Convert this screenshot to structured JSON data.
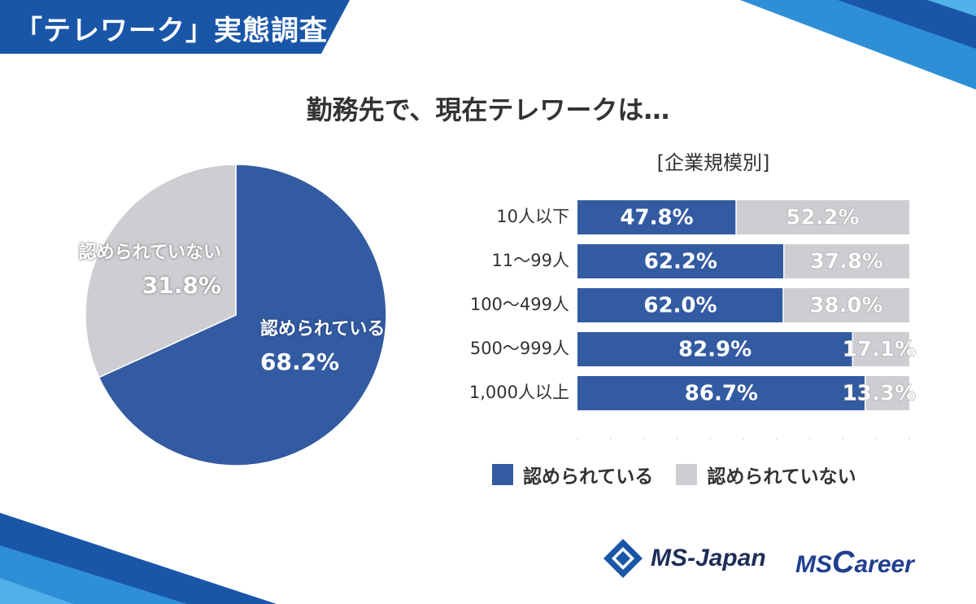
{
  "header": {
    "title": "「テレワーク」実態調査"
  },
  "main_title": "勤務先で、現在テレワークは…",
  "subtitle": "[企業規模別]",
  "colors": {
    "allowed": "#335ba1",
    "not_allowed": "#cdcdd2",
    "banner": "#1a56a8"
  },
  "legend": {
    "allowed": "認められている",
    "not_allowed": "認められていない"
  },
  "logos": {
    "ms_japan": "MS-Japan",
    "ms_career_prefix": "MS",
    "ms_career_c": "C",
    "ms_career_rest": "areer"
  },
  "chart_data": [
    {
      "type": "pie",
      "labels": [
        "認められている",
        "認められていない"
      ],
      "values": [
        68.2,
        31.8
      ],
      "value_labels": [
        "68.2%",
        "31.8%"
      ]
    },
    {
      "type": "bar",
      "orientation": "horizontal",
      "stacked": true,
      "categories": [
        "10人以下",
        "11〜99人",
        "100〜499人",
        "500〜999人",
        "1,000人以上"
      ],
      "series": [
        {
          "name": "認められている",
          "values": [
            47.8,
            62.2,
            62.0,
            82.9,
            86.7
          ],
          "labels": [
            "47.8%",
            "62.2%",
            "62.0%",
            "82.9%",
            "86.7%"
          ]
        },
        {
          "name": "認められていない",
          "values": [
            52.2,
            37.8,
            38.0,
            17.1,
            13.3
          ],
          "labels": [
            "52.2%",
            "37.8%",
            "38.0%",
            "17.1%",
            "13.3%"
          ]
        }
      ],
      "xlim": [
        0,
        100
      ]
    }
  ]
}
